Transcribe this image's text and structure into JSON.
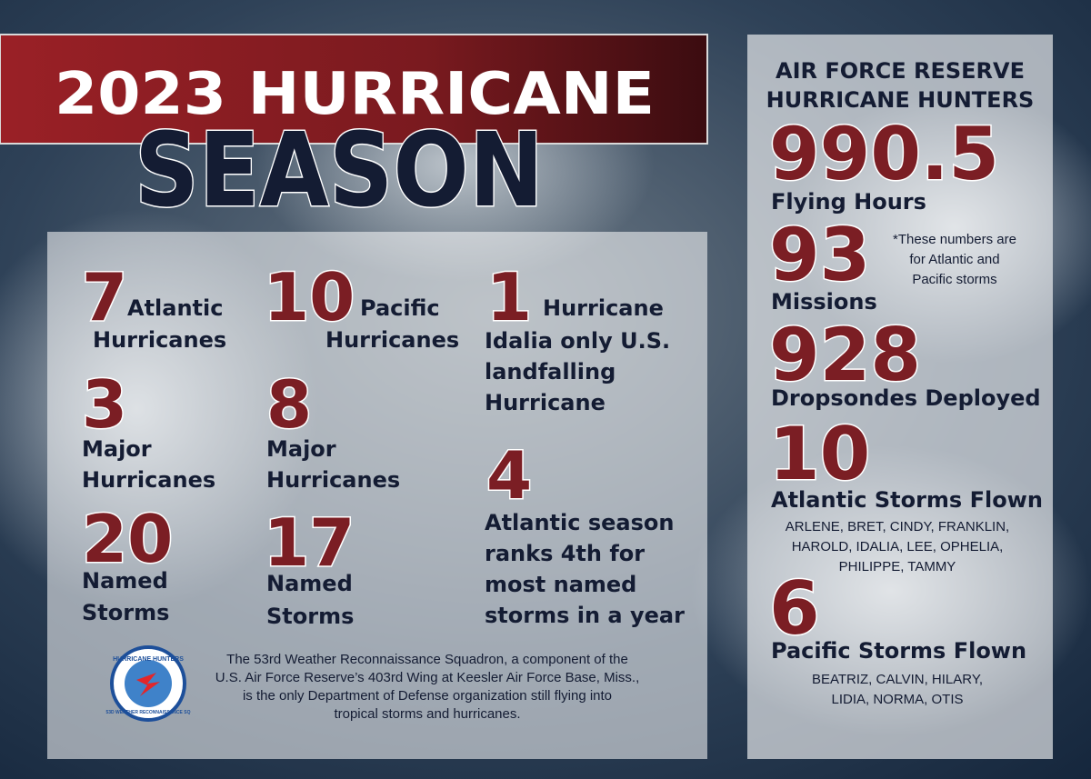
{
  "header": {
    "title_line1": "2023 HURRICANE",
    "title_line2": "SEASON"
  },
  "left": {
    "stats": [
      {
        "number": "7",
        "lines": [
          "Atlantic",
          "Hurricanes"
        ]
      },
      {
        "number": "10",
        "lines": [
          "Pacific",
          "Hurricanes"
        ]
      },
      {
        "number": "1",
        "lines": [
          "Hurricane",
          "Idalia only U.S.",
          "landfalling",
          "Hurricane"
        ]
      },
      {
        "number": "3",
        "lines": [
          "Major",
          "Hurricanes"
        ]
      },
      {
        "number": "8",
        "lines": [
          "Major",
          "Hurricanes"
        ]
      },
      {
        "number": "4",
        "lines": [
          "Atlantic season",
          "ranks 4th for",
          "most named",
          "storms in a year"
        ]
      },
      {
        "number": "20",
        "lines": [
          "Named",
          "Storms"
        ]
      },
      {
        "number": "17",
        "lines": [
          "Named",
          "Storms"
        ]
      }
    ],
    "logo": {
      "top": "HURRICANE HUNTERS",
      "bottom": "53D WEATHER RECONNAISSANCE SQ"
    },
    "footer": [
      "The 53rd Weather Reconnaissance Squadron, a component of the",
      "U.S. Air Force Reserve’s 403rd Wing at Keesler Air Force Base, Miss.,",
      "is the only Department of Defense organization still flying into",
      "tropical storms and hurricanes."
    ]
  },
  "right": {
    "heading": [
      "AIR FORCE RESERVE",
      "HURRICANE HUNTERS"
    ],
    "note": [
      "*These numbers are",
      "for Atlantic and",
      "Pacific storms"
    ],
    "stats": [
      {
        "number": "990.5",
        "label": "Flying Hours",
        "names": []
      },
      {
        "number": "93",
        "label": "Missions",
        "names": []
      },
      {
        "number": "928",
        "label": "Dropsondes Deployed",
        "names": []
      },
      {
        "number": "10",
        "label": "Atlantic Storms Flown",
        "names": [
          "ARLENE, BRET, CINDY, FRANKLIN,",
          "HAROLD, IDALIA, LEE, OPHELIA,",
          "PHILIPPE, TAMMY"
        ]
      },
      {
        "number": "6",
        "label": "Pacific Storms Flown",
        "names": [
          "BEATRIZ, CALVIN, HILARY,",
          "LIDIA, NORMA, OTIS"
        ]
      }
    ]
  }
}
